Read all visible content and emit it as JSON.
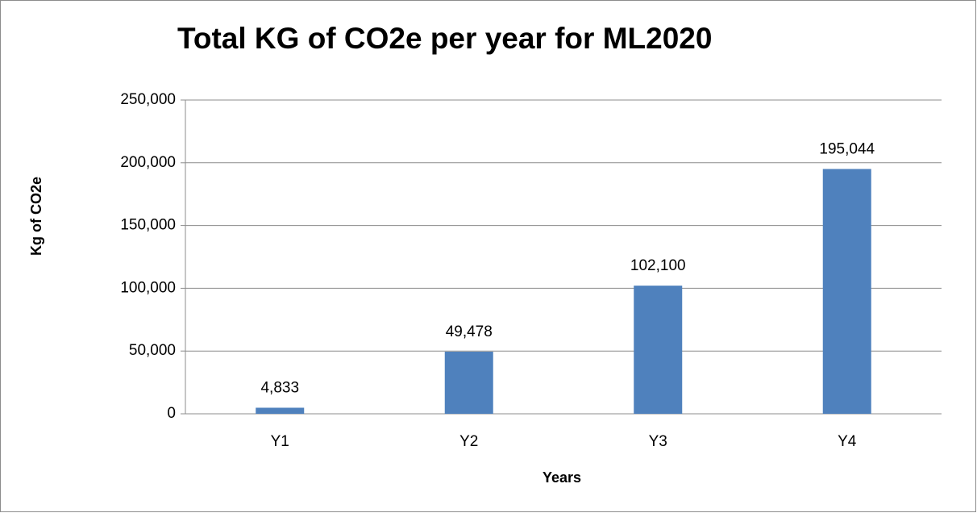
{
  "chart_data": {
    "type": "bar",
    "title": "Total KG of CO2e per year for ML2020",
    "x_label": "Years",
    "y_label": "Kg of CO2e",
    "categories": [
      "Y1",
      "Y2",
      "Y3",
      "Y4"
    ],
    "values": [
      4833,
      49478,
      102100,
      195044
    ],
    "value_labels": [
      "4,833",
      "49,478",
      "102,100",
      "195,044"
    ],
    "color": "#4f81bd",
    "ylim": [
      0,
      250000
    ],
    "yticks": [
      0,
      {
        "value": 50000,
        "label": "50,000"
      },
      {
        "value": 100000,
        "label": "100,000"
      },
      {
        "value": 150000,
        "label": "150,000"
      },
      {
        "value": 200000,
        "label": "200,000"
      },
      {
        "value": 250000,
        "label": "250,000"
      }
    ],
    "grid": true
  }
}
